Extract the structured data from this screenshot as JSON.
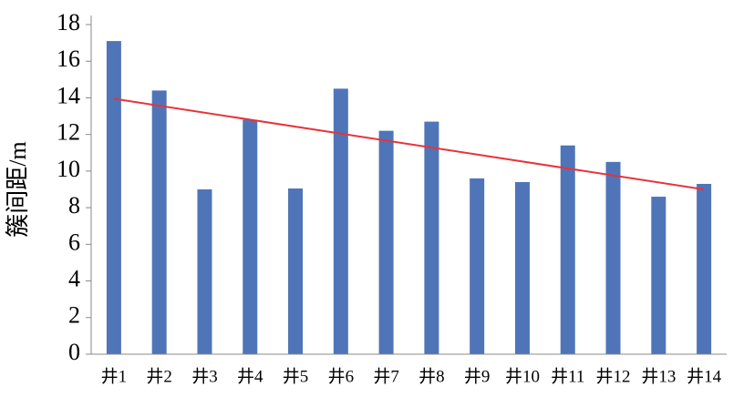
{
  "chart_data": {
    "type": "bar",
    "y_label": "簇间距/m",
    "categories": [
      "井1",
      "井2",
      "井3",
      "井4",
      "井5",
      "井6",
      "井7",
      "井8",
      "井9",
      "井10",
      "井11",
      "井12",
      "井13",
      "井14"
    ],
    "values": [
      17.1,
      14.4,
      9.0,
      12.8,
      9.05,
      14.5,
      12.2,
      12.7,
      9.6,
      9.4,
      11.4,
      10.5,
      8.6,
      9.3
    ],
    "color": "#4f75b8",
    "trendline": {
      "color": "#e8323a",
      "values": [
        13.95,
        9.0
      ]
    },
    "ylim": [
      0,
      18
    ],
    "yticks": [
      0,
      2,
      4,
      6,
      8,
      10,
      12,
      14,
      16,
      18
    ],
    "grid": false
  }
}
